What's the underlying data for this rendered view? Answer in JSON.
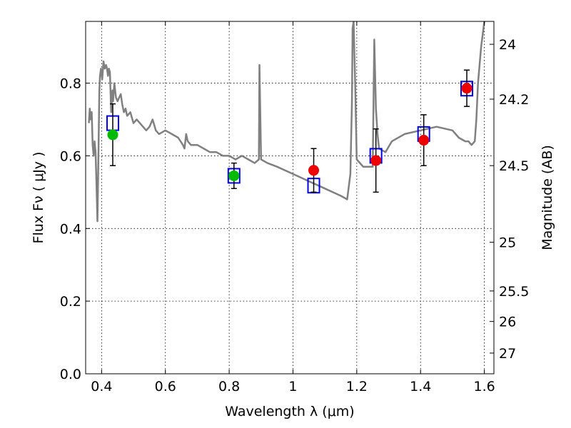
{
  "chart_data": {
    "type": "scatter",
    "xlabel": "Wavelength  λ (μm)",
    "ylabel": "Flux  Fν  ( μJy )",
    "ylabel_right": "Magnitude (AB)",
    "xlim": [
      0.35,
      1.63
    ],
    "ylim": [
      0.0,
      0.97
    ],
    "grid": true,
    "x_ticks": [
      0.4,
      0.6,
      0.8,
      1.0,
      1.2,
      1.4,
      1.6
    ],
    "x_tick_labels": [
      "0.4",
      "0.6",
      "0.8",
      "1",
      "1.2",
      "1.4",
      "1.6"
    ],
    "y_ticks": [
      0.0,
      0.2,
      0.4,
      0.6,
      0.8
    ],
    "y_tick_labels": [
      "0.0",
      "0.2",
      "0.4",
      "0.6",
      "0.8"
    ],
    "right_ticks": [
      {
        "flux": 0.907,
        "label": "24"
      },
      {
        "flux": 0.756,
        "label": "24.2"
      },
      {
        "flux": 0.573,
        "label": "24.5"
      },
      {
        "flux": 0.362,
        "label": "25"
      },
      {
        "flux": 0.228,
        "label": "25.5"
      },
      {
        "flux": 0.144,
        "label": "26"
      },
      {
        "flux": 0.057,
        "label": "27"
      }
    ],
    "colors": {
      "model": "#808080",
      "green": "#00bb00",
      "red": "#ee0000",
      "square": "#0000ee",
      "errorbar": "#000000"
    },
    "series": [
      {
        "kind": "model-spectrum",
        "x": [
          0.36,
          0.363,
          0.366,
          0.369,
          0.372,
          0.375,
          0.378,
          0.381,
          0.384,
          0.387,
          0.39,
          0.393,
          0.395,
          0.398,
          0.402,
          0.406,
          0.41,
          0.414,
          0.417,
          0.42,
          0.423,
          0.426,
          0.43,
          0.434,
          0.436,
          0.44,
          0.445,
          0.45,
          0.455,
          0.46,
          0.465,
          0.47,
          0.475,
          0.48,
          0.49,
          0.5,
          0.51,
          0.52,
          0.53,
          0.54,
          0.55,
          0.56,
          0.57,
          0.58,
          0.6,
          0.62,
          0.64,
          0.655,
          0.66,
          0.665,
          0.67,
          0.68,
          0.7,
          0.72,
          0.74,
          0.76,
          0.78,
          0.8,
          0.82,
          0.84,
          0.86,
          0.88,
          0.893,
          0.895,
          0.9,
          0.92,
          0.95,
          1.0,
          1.05,
          1.1,
          1.15,
          1.17,
          1.18,
          1.185,
          1.187,
          1.19,
          1.195,
          1.2,
          1.22,
          1.25,
          1.255,
          1.26,
          1.265,
          1.27,
          1.29,
          1.31,
          1.35,
          1.4,
          1.45,
          1.5,
          1.52,
          1.54,
          1.55,
          1.56,
          1.57,
          1.575,
          1.58,
          1.59,
          1.6
        ],
        "y": [
          0.69,
          0.73,
          0.7,
          0.72,
          0.63,
          0.6,
          0.64,
          0.61,
          0.52,
          0.42,
          0.6,
          0.78,
          0.82,
          0.84,
          0.81,
          0.86,
          0.84,
          0.85,
          0.84,
          0.82,
          0.84,
          0.83,
          0.72,
          0.78,
          0.75,
          0.8,
          0.76,
          0.75,
          0.76,
          0.77,
          0.74,
          0.72,
          0.73,
          0.71,
          0.72,
          0.69,
          0.7,
          0.69,
          0.68,
          0.67,
          0.68,
          0.7,
          0.67,
          0.66,
          0.67,
          0.66,
          0.65,
          0.63,
          0.62,
          0.66,
          0.64,
          0.63,
          0.63,
          0.62,
          0.61,
          0.61,
          0.6,
          0.6,
          0.59,
          0.6,
          0.59,
          0.58,
          0.59,
          0.85,
          0.59,
          0.58,
          0.57,
          0.55,
          0.53,
          0.51,
          0.49,
          0.48,
          0.55,
          0.75,
          0.95,
          0.97,
          0.8,
          0.59,
          0.57,
          0.57,
          0.92,
          0.73,
          0.66,
          0.62,
          0.61,
          0.64,
          0.66,
          0.67,
          0.68,
          0.67,
          0.65,
          0.64,
          0.64,
          0.63,
          0.64,
          0.7,
          0.8,
          0.9,
          0.97
        ]
      },
      {
        "kind": "model-photometry",
        "marker": "square",
        "x": [
          0.435,
          0.815,
          1.065,
          1.26,
          1.41,
          1.545
        ],
        "y": [
          0.69,
          0.545,
          0.518,
          0.6,
          0.66,
          0.785
        ]
      },
      {
        "kind": "observed",
        "marker": "circle",
        "points": [
          {
            "x": 0.435,
            "y": 0.658,
            "err": 0.085,
            "color": "green"
          },
          {
            "x": 0.815,
            "y": 0.545,
            "err": 0.035,
            "color": "green"
          },
          {
            "x": 1.065,
            "y": 0.56,
            "err": 0.06,
            "color": "red"
          },
          {
            "x": 1.26,
            "y": 0.587,
            "err": 0.087,
            "color": "red"
          },
          {
            "x": 1.41,
            "y": 0.643,
            "err": 0.07,
            "color": "red"
          },
          {
            "x": 1.545,
            "y": 0.786,
            "err": 0.05,
            "color": "red"
          }
        ]
      }
    ]
  }
}
